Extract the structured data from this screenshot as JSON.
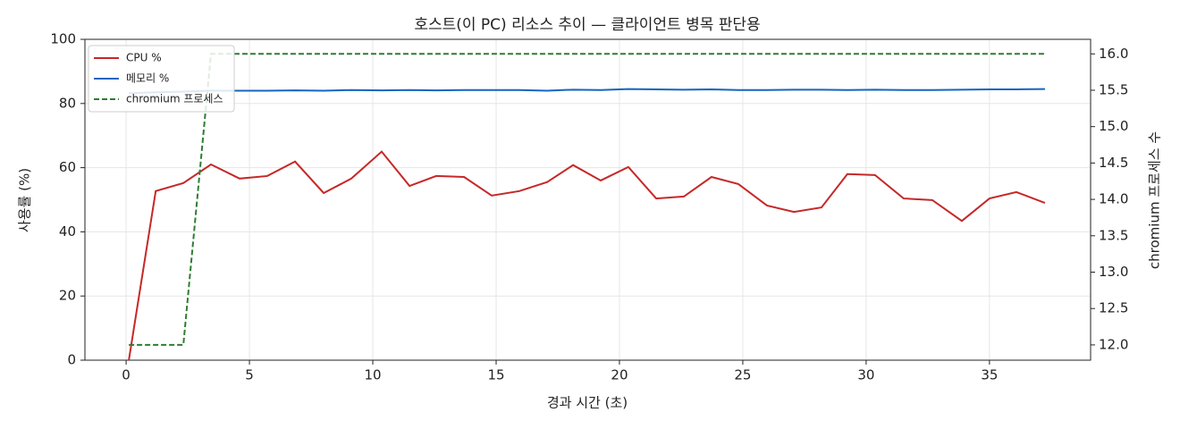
{
  "chart_data": {
    "type": "line",
    "title": "호스트(이 PC) 리소스 추이 — 클라이언트 병목 판단용",
    "xlabel": "경과 시간 (초)",
    "ylabel": "사용률 (%)",
    "y2label": "chromium 프로세스 수",
    "x": [
      0.11,
      1.2,
      2.32,
      3.44,
      4.6,
      5.72,
      6.85,
      8.01,
      9.13,
      10.36,
      11.49,
      12.57,
      13.7,
      14.82,
      15.94,
      17.07,
      18.12,
      19.24,
      20.36,
      21.49,
      22.61,
      23.73,
      24.82,
      25.98,
      27.07,
      28.19,
      29.24,
      30.36,
      31.52,
      32.68,
      33.88,
      35.0,
      36.09,
      37.25
    ],
    "series": [
      {
        "name": "CPU %",
        "color": "#c62828",
        "linestyle": "solid",
        "values": [
          0,
          52.7,
          55.2,
          61,
          56.6,
          57.4,
          61.9,
          52.1,
          56.6,
          65,
          54.3,
          57.4,
          57.1,
          51.3,
          52.7,
          55.5,
          60.8,
          56,
          60.2,
          50.4,
          51,
          57.1,
          54.9,
          48.2,
          46.2,
          47.6,
          58,
          57.7,
          50.4,
          49.9,
          43.4,
          50.4,
          52.4,
          49
        ]
      },
      {
        "name": "메모리 %",
        "color": "#1565c0",
        "linestyle": "solid",
        "values": [
          83.2,
          83.5,
          83.7,
          84.0,
          84.0,
          84.0,
          84.1,
          84.0,
          84.2,
          84.1,
          84.2,
          84.1,
          84.2,
          84.2,
          84.2,
          84.0,
          84.3,
          84.2,
          84.5,
          84.4,
          84.3,
          84.4,
          84.2,
          84.2,
          84.3,
          84.3,
          84.2,
          84.3,
          84.2,
          84.2,
          84.3,
          84.4,
          84.4,
          84.5
        ]
      },
      {
        "name": "chromium 프로세스",
        "color": "#2e7d32",
        "linestyle": "dashed",
        "axis": "y2",
        "values": [
          12,
          12,
          12,
          16,
          16,
          16,
          16,
          16,
          16,
          16,
          16,
          16,
          16,
          16,
          16,
          16,
          16,
          16,
          16,
          16,
          16,
          16,
          16,
          16,
          16,
          16,
          16,
          16,
          16,
          16,
          16,
          16,
          16,
          16
        ]
      }
    ],
    "xlim": [
      -1.67,
      39.1
    ],
    "xticks": [
      0,
      5,
      10,
      15,
      20,
      25,
      30,
      35
    ],
    "ylim": [
      0,
      100
    ],
    "yticks": [
      0,
      20,
      40,
      60,
      80,
      100
    ],
    "y2lim": [
      11.79,
      16.2
    ],
    "y2ticks": [
      {
        "value": 12,
        "label": "12.0"
      },
      12.5,
      {
        "value": 13,
        "label": "13.0"
      },
      13.5,
      {
        "value": 14,
        "label": "14.0"
      },
      14.5,
      {
        "value": 15,
        "label": "15.0"
      },
      15.5,
      {
        "value": 16,
        "label": "16.0"
      }
    ],
    "grid": true,
    "legend": "upper left"
  }
}
